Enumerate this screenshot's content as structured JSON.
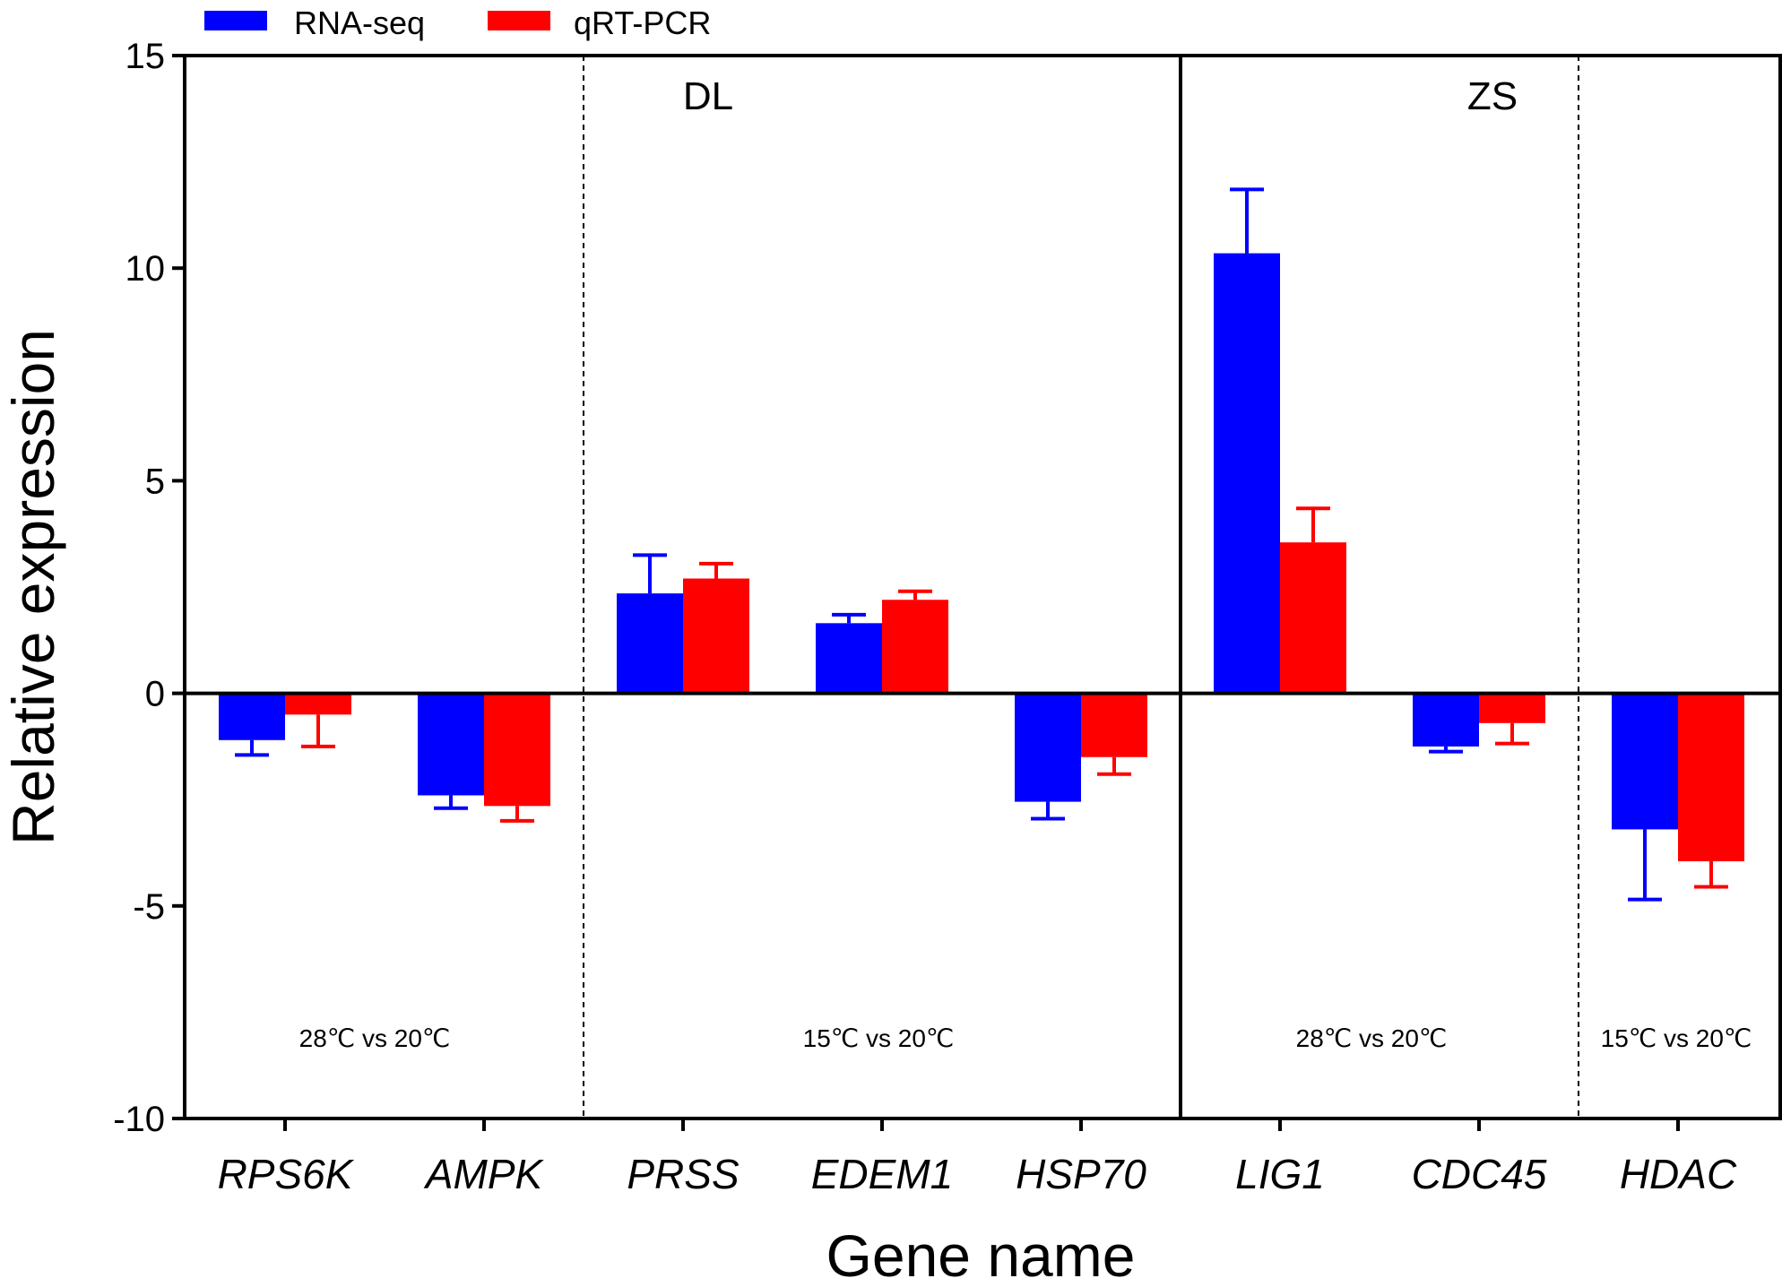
{
  "chart_data": {
    "type": "bar",
    "xlabel": "Gene name",
    "ylabel": "Relative expression",
    "ylim": [
      -10,
      15
    ],
    "yticks": [
      "15",
      "10",
      "5",
      "0",
      "-5",
      "-10"
    ],
    "categories": [
      "RPS6K",
      "AMPK",
      "PRSS",
      "EDEM1",
      "HSP70",
      "LIG1",
      "CDC45",
      "HDAC"
    ],
    "series": [
      {
        "name": "RNA-seq",
        "color": "#0000ff",
        "values": [
          -1.1,
          -2.4,
          2.35,
          1.65,
          -2.55,
          10.35,
          -1.25,
          -3.2
        ],
        "errors": [
          0.35,
          0.3,
          0.9,
          0.2,
          0.4,
          1.5,
          0.12,
          1.65
        ]
      },
      {
        "name": "qRT-PCR",
        "color": "#ff0000",
        "values": [
          -0.5,
          -2.65,
          2.7,
          2.2,
          -1.5,
          3.55,
          -0.7,
          -3.95
        ],
        "errors": [
          0.75,
          0.35,
          0.35,
          0.2,
          0.4,
          0.8,
          0.48,
          0.6
        ]
      }
    ],
    "groups": [
      {
        "label": "DL"
      },
      {
        "label": "ZS"
      }
    ],
    "conditions": [
      "28℃ vs 20℃",
      "15℃ vs 20℃",
      "28℃ vs 20℃",
      "15℃ vs 20℃"
    ]
  }
}
